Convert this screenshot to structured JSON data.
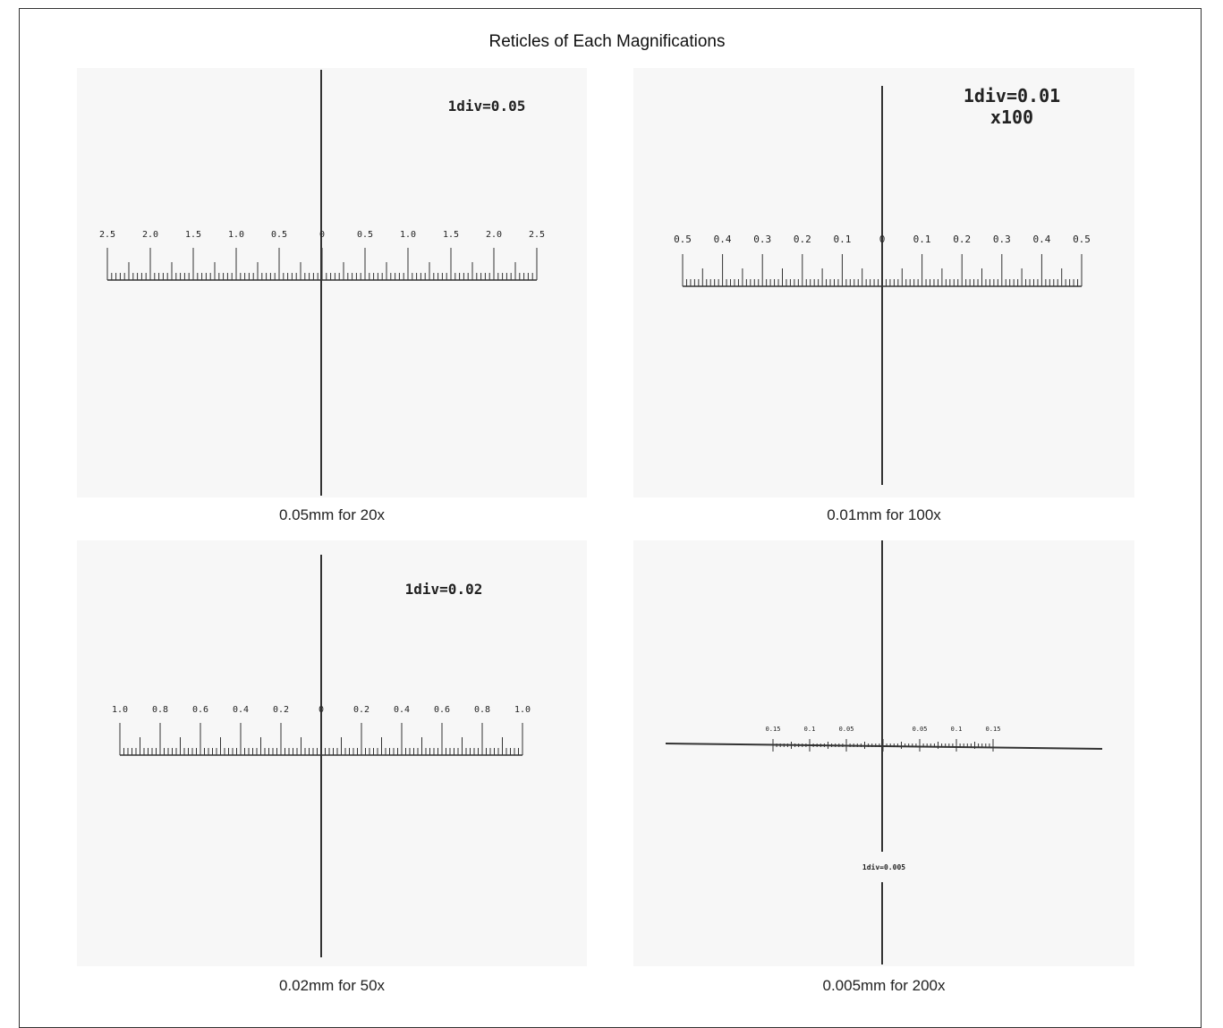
{
  "title": "Reticles of Each Magnifications",
  "line_color": "#333333",
  "panel_bg": "#f7f7f7",
  "reticles": [
    {
      "caption": "0.05mm for 20x",
      "div_label": [
        "1div=0.05"
      ],
      "major_left": [
        "2.5",
        "2.0",
        "1.5",
        "1.0",
        "0.5"
      ],
      "zero": "0",
      "major_right": [
        "0.5",
        "1.0",
        "1.5",
        "2.0",
        "2.5"
      ],
      "divisions_per_side": 50,
      "minor_per_major": 10
    },
    {
      "caption": "0.01mm for 100x",
      "div_label": [
        "1div=0.01",
        "x100"
      ],
      "major_left": [
        "0.5",
        "0.4",
        "0.3",
        "0.2",
        "0.1"
      ],
      "zero": "0",
      "major_right": [
        "0.1",
        "0.2",
        "0.3",
        "0.4",
        "0.5"
      ],
      "divisions_per_side": 50,
      "minor_per_major": 10
    },
    {
      "caption": "0.02mm for 50x",
      "div_label": [
        "1div=0.02"
      ],
      "major_left": [
        "1.0",
        "0.8",
        "0.6",
        "0.4",
        "0.2"
      ],
      "zero": "0",
      "major_right": [
        "0.2",
        "0.4",
        "0.6",
        "0.8",
        "1.0"
      ],
      "divisions_per_side": 50,
      "minor_per_major": 10
    },
    {
      "caption": "0.005mm for 200x",
      "div_label": [
        "1div=0.005"
      ],
      "major_left": [
        "0.15",
        "0.1",
        "0.05"
      ],
      "zero": "",
      "major_right": [
        "0.05",
        "0.1",
        "0.15"
      ],
      "divisions_per_side": 30,
      "minor_per_major": 10
    }
  ]
}
